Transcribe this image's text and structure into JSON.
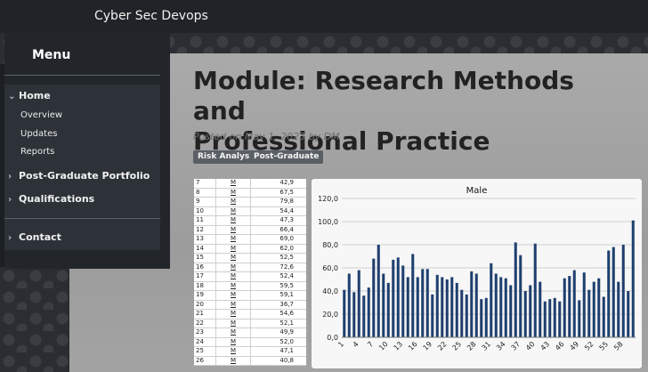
{
  "header": {
    "site_title": "Cyber Sec Devops"
  },
  "menu": {
    "title": "Menu",
    "sections": [
      {
        "label": "Home",
        "expanded": true,
        "items": [
          "Overview",
          "Updates",
          "Reports"
        ]
      },
      {
        "label": "Post-Graduate Portfolio",
        "expanded": false
      },
      {
        "label": "Qualifications",
        "expanded": false
      },
      {
        "label": "Contact",
        "expanded": false
      }
    ]
  },
  "post": {
    "title_line1": "Module: Research Methods and",
    "title_line2": "Professional Practice",
    "meta": "Posted on May 1, 2023 by DM",
    "tags": [
      "Risk Analyst",
      "Post-Graduate"
    ]
  },
  "table": {
    "rows": [
      [
        "7",
        "M",
        "42,9"
      ],
      [
        "8",
        "M",
        "67,5"
      ],
      [
        "9",
        "M",
        "79,8"
      ],
      [
        "10",
        "M",
        "54,4"
      ],
      [
        "11",
        "M",
        "47,3"
      ],
      [
        "12",
        "M",
        "66,4"
      ],
      [
        "13",
        "M",
        "69,0"
      ],
      [
        "14",
        "M",
        "62,0"
      ],
      [
        "15",
        "M",
        "52,5"
      ],
      [
        "16",
        "M",
        "72,6"
      ],
      [
        "17",
        "M",
        "52,4"
      ],
      [
        "18",
        "M",
        "59,5"
      ],
      [
        "19",
        "M",
        "59,1"
      ],
      [
        "20",
        "M",
        "36,7"
      ],
      [
        "21",
        "M",
        "54,6"
      ],
      [
        "22",
        "M",
        "52,1"
      ],
      [
        "23",
        "M",
        "49,9"
      ],
      [
        "24",
        "M",
        "52,0"
      ],
      [
        "25",
        "M",
        "47,1"
      ],
      [
        "26",
        "M",
        "40,8"
      ]
    ]
  },
  "chart_data": {
    "type": "bar",
    "title": "Male",
    "ylim": [
      0,
      120
    ],
    "yticks": [
      "0,0",
      "20,0",
      "40,0",
      "60,0",
      "80,0",
      "100,0",
      "120,0"
    ],
    "xtick_labels": [
      "1",
      "4",
      "7",
      "10",
      "13",
      "16",
      "19",
      "22",
      "25",
      "28",
      "31",
      "34",
      "37",
      "40",
      "43",
      "46",
      "49",
      "52",
      "55",
      "58"
    ],
    "categories": [
      "1",
      "2",
      "3",
      "4",
      "5",
      "6",
      "7",
      "8",
      "9",
      "10",
      "11",
      "12",
      "13",
      "14",
      "15",
      "16",
      "17",
      "18",
      "19",
      "20",
      "21",
      "22",
      "23",
      "24",
      "25",
      "26",
      "27",
      "28",
      "29",
      "30",
      "31",
      "32",
      "33",
      "34",
      "35",
      "36",
      "37",
      "38",
      "39",
      "40",
      "41",
      "42",
      "43",
      "44",
      "45",
      "46",
      "47",
      "48",
      "49",
      "50",
      "51",
      "52",
      "53",
      "54",
      "55",
      "56",
      "57",
      "58",
      "59",
      "60"
    ],
    "values": [
      41,
      55,
      39,
      58,
      36,
      43,
      68,
      80,
      55,
      47,
      67,
      69,
      62,
      52,
      72,
      52,
      59,
      59,
      37,
      54,
      52,
      50,
      52,
      47,
      41,
      37,
      57,
      55,
      33,
      34,
      64,
      55,
      52,
      51,
      45,
      82,
      71,
      40,
      45,
      81,
      48,
      31,
      33,
      34,
      31,
      51,
      53,
      58,
      32,
      56,
      41,
      48,
      51,
      35,
      75,
      78,
      48,
      80,
      40,
      101
    ],
    "bar_color": "#1f3f6e",
    "grid": true
  }
}
